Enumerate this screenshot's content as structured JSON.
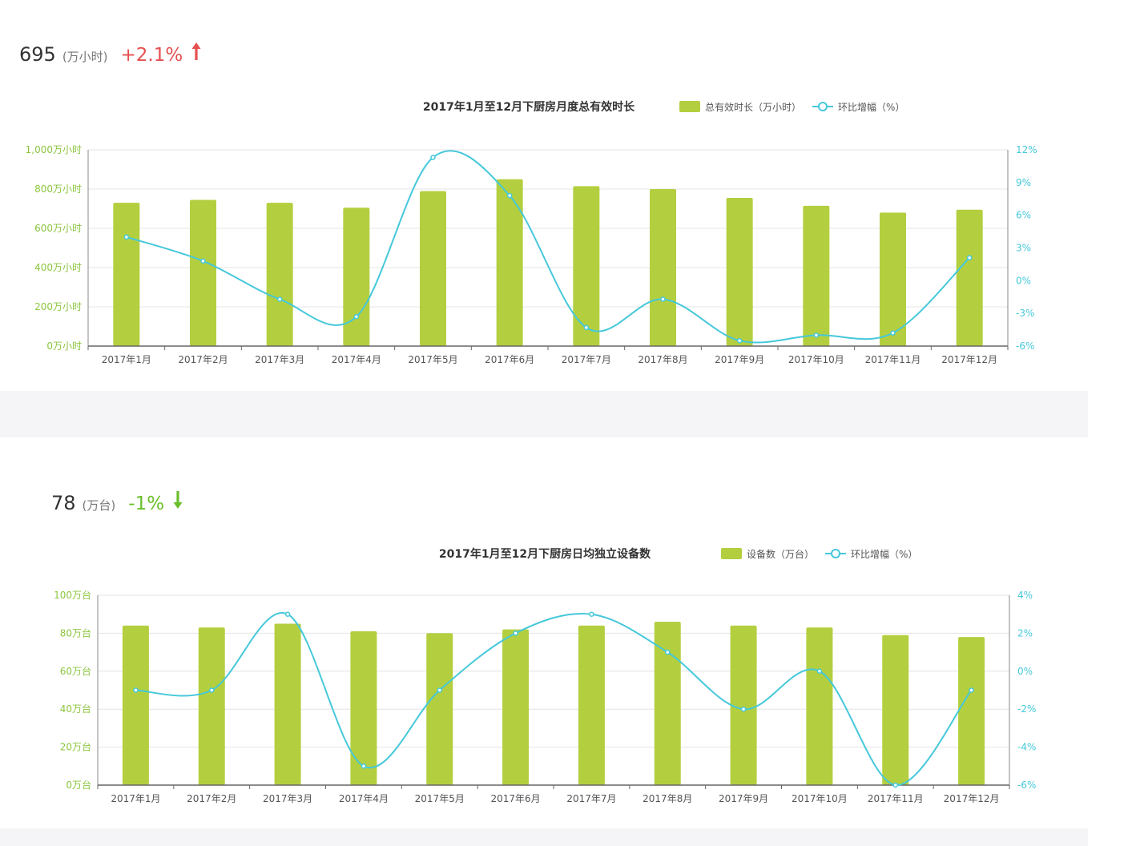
{
  "colors": {
    "bar": "#b3cf3f",
    "line": "#45c8da",
    "up": "#e55050",
    "down": "#6abf2a",
    "left_axis_text": "#8cc63f",
    "right_axis_text": "#45c8da",
    "grid": "#e4e4e4"
  },
  "charts": [
    {
      "kpi": {
        "value": "695",
        "unit": "(万小时)",
        "change": "+2.1%",
        "direction": "up",
        "arrow_icon": "arrow-up-icon"
      }
    },
    {
      "kpi": {
        "value": "78",
        "unit": "(万台)",
        "change": "-1%",
        "direction": "down",
        "arrow_icon": "arrow-down-icon"
      }
    }
  ],
  "chart_data": [
    {
      "type": "bar",
      "title": "2017年1月至12月下厨房月度总有效时长",
      "categories": [
        "2017年1月",
        "2017年2月",
        "2017年3月",
        "2017年4月",
        "2017年5月",
        "2017年6月",
        "2017年7月",
        "2017年8月",
        "2017年9月",
        "2017年10月",
        "2017年11月",
        "2017年12月"
      ],
      "series": [
        {
          "name": "总有效时长（万小时）",
          "type": "bar",
          "axis": "left",
          "values": [
            730,
            745,
            730,
            705,
            790,
            850,
            815,
            800,
            755,
            715,
            680,
            695
          ]
        },
        {
          "name": "环比增幅（%）",
          "type": "line",
          "axis": "right",
          "values": [
            4,
            1.8,
            -1.7,
            -3.3,
            11.3,
            7.8,
            -4.3,
            -1.7,
            -5.5,
            -5,
            -4.8,
            2.1
          ]
        }
      ],
      "left_axis": {
        "min": 0,
        "max": 1000,
        "ticks": [
          "0万小时",
          "200万小时",
          "400万小时",
          "600万小时",
          "800万小时",
          "1,000万小时"
        ]
      },
      "right_axis": {
        "min": -6,
        "max": 12,
        "ticks": [
          "-6%",
          "-3%",
          "0%",
          "3%",
          "6%",
          "9%",
          "12%"
        ]
      },
      "legend_position": "top-right",
      "grid": true
    },
    {
      "type": "bar",
      "title": "2017年1月至12月下厨房日均独立设备数",
      "categories": [
        "2017年1月",
        "2017年2月",
        "2017年3月",
        "2017年4月",
        "2017年5月",
        "2017年6月",
        "2017年7月",
        "2017年8月",
        "2017年9月",
        "2017年10月",
        "2017年11月",
        "2017年12月"
      ],
      "series": [
        {
          "name": "设备数（万台）",
          "type": "bar",
          "axis": "left",
          "values": [
            84,
            83,
            85,
            81,
            80,
            82,
            84,
            86,
            84,
            83,
            79,
            78
          ]
        },
        {
          "name": "环比增幅（%）",
          "type": "line",
          "axis": "right",
          "values": [
            -1,
            -1,
            3,
            -5,
            -1,
            2,
            3,
            1,
            -2,
            0,
            -6,
            -1
          ]
        }
      ],
      "left_axis": {
        "min": 0,
        "max": 100,
        "ticks": [
          "0万台",
          "20万台",
          "40万台",
          "60万台",
          "80万台",
          "100万台"
        ]
      },
      "right_axis": {
        "min": -6,
        "max": 4,
        "ticks": [
          "-6%",
          "-4%",
          "-2%",
          "0%",
          "2%",
          "4%"
        ]
      },
      "legend_position": "top-right",
      "grid": true
    }
  ]
}
